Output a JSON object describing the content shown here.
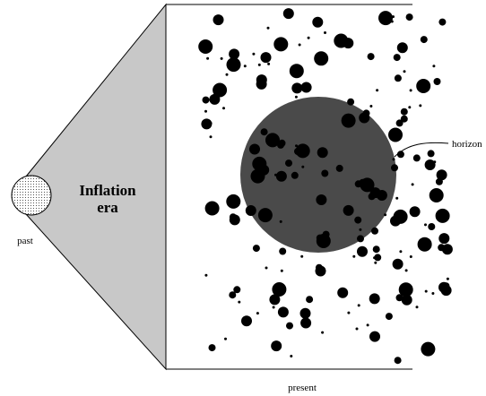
{
  "diagram": {
    "cone_label": [
      "Inflation",
      "era"
    ],
    "past_label": "past",
    "horizon_label": "horizon",
    "present_label": "present"
  }
}
